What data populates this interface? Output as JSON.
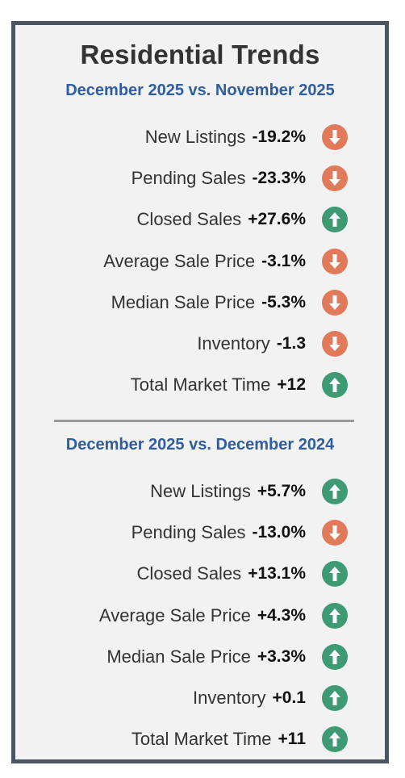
{
  "title": "Residential Trends",
  "sections": [
    {
      "heading": "December 2025 vs. November 2025",
      "rows": [
        {
          "label": "New Listings",
          "value": "-19.2%",
          "direction": "down"
        },
        {
          "label": "Pending Sales",
          "value": "-23.3%",
          "direction": "down"
        },
        {
          "label": "Closed Sales",
          "value": "+27.6%",
          "direction": "up"
        },
        {
          "label": "Average Sale Price",
          "value": "-3.1%",
          "direction": "down"
        },
        {
          "label": "Median Sale Price",
          "value": "-5.3%",
          "direction": "down"
        },
        {
          "label": "Inventory",
          "value": "-1.3",
          "direction": "down"
        },
        {
          "label": "Total Market Time",
          "value": "+12",
          "direction": "up"
        }
      ]
    },
    {
      "heading": "December 2025 vs. December 2024",
      "rows": [
        {
          "label": "New Listings",
          "value": "+5.7%",
          "direction": "up"
        },
        {
          "label": "Pending Sales",
          "value": "-13.0%",
          "direction": "down"
        },
        {
          "label": "Closed Sales",
          "value": "+13.1%",
          "direction": "up"
        },
        {
          "label": "Average Sale Price",
          "value": "+4.3%",
          "direction": "up"
        },
        {
          "label": "Median Sale Price",
          "value": "+3.3%",
          "direction": "up"
        },
        {
          "label": "Inventory",
          "value": "+0.1",
          "direction": "up"
        },
        {
          "label": "Total Market Time",
          "value": "+11",
          "direction": "up"
        }
      ]
    }
  ],
  "colors": {
    "down": "#e07a5a",
    "up": "#3d9a72",
    "heading": "#2f5d9e",
    "border": "#4b5563"
  },
  "icons": {
    "up": "arrow-up-icon",
    "down": "arrow-down-icon"
  }
}
